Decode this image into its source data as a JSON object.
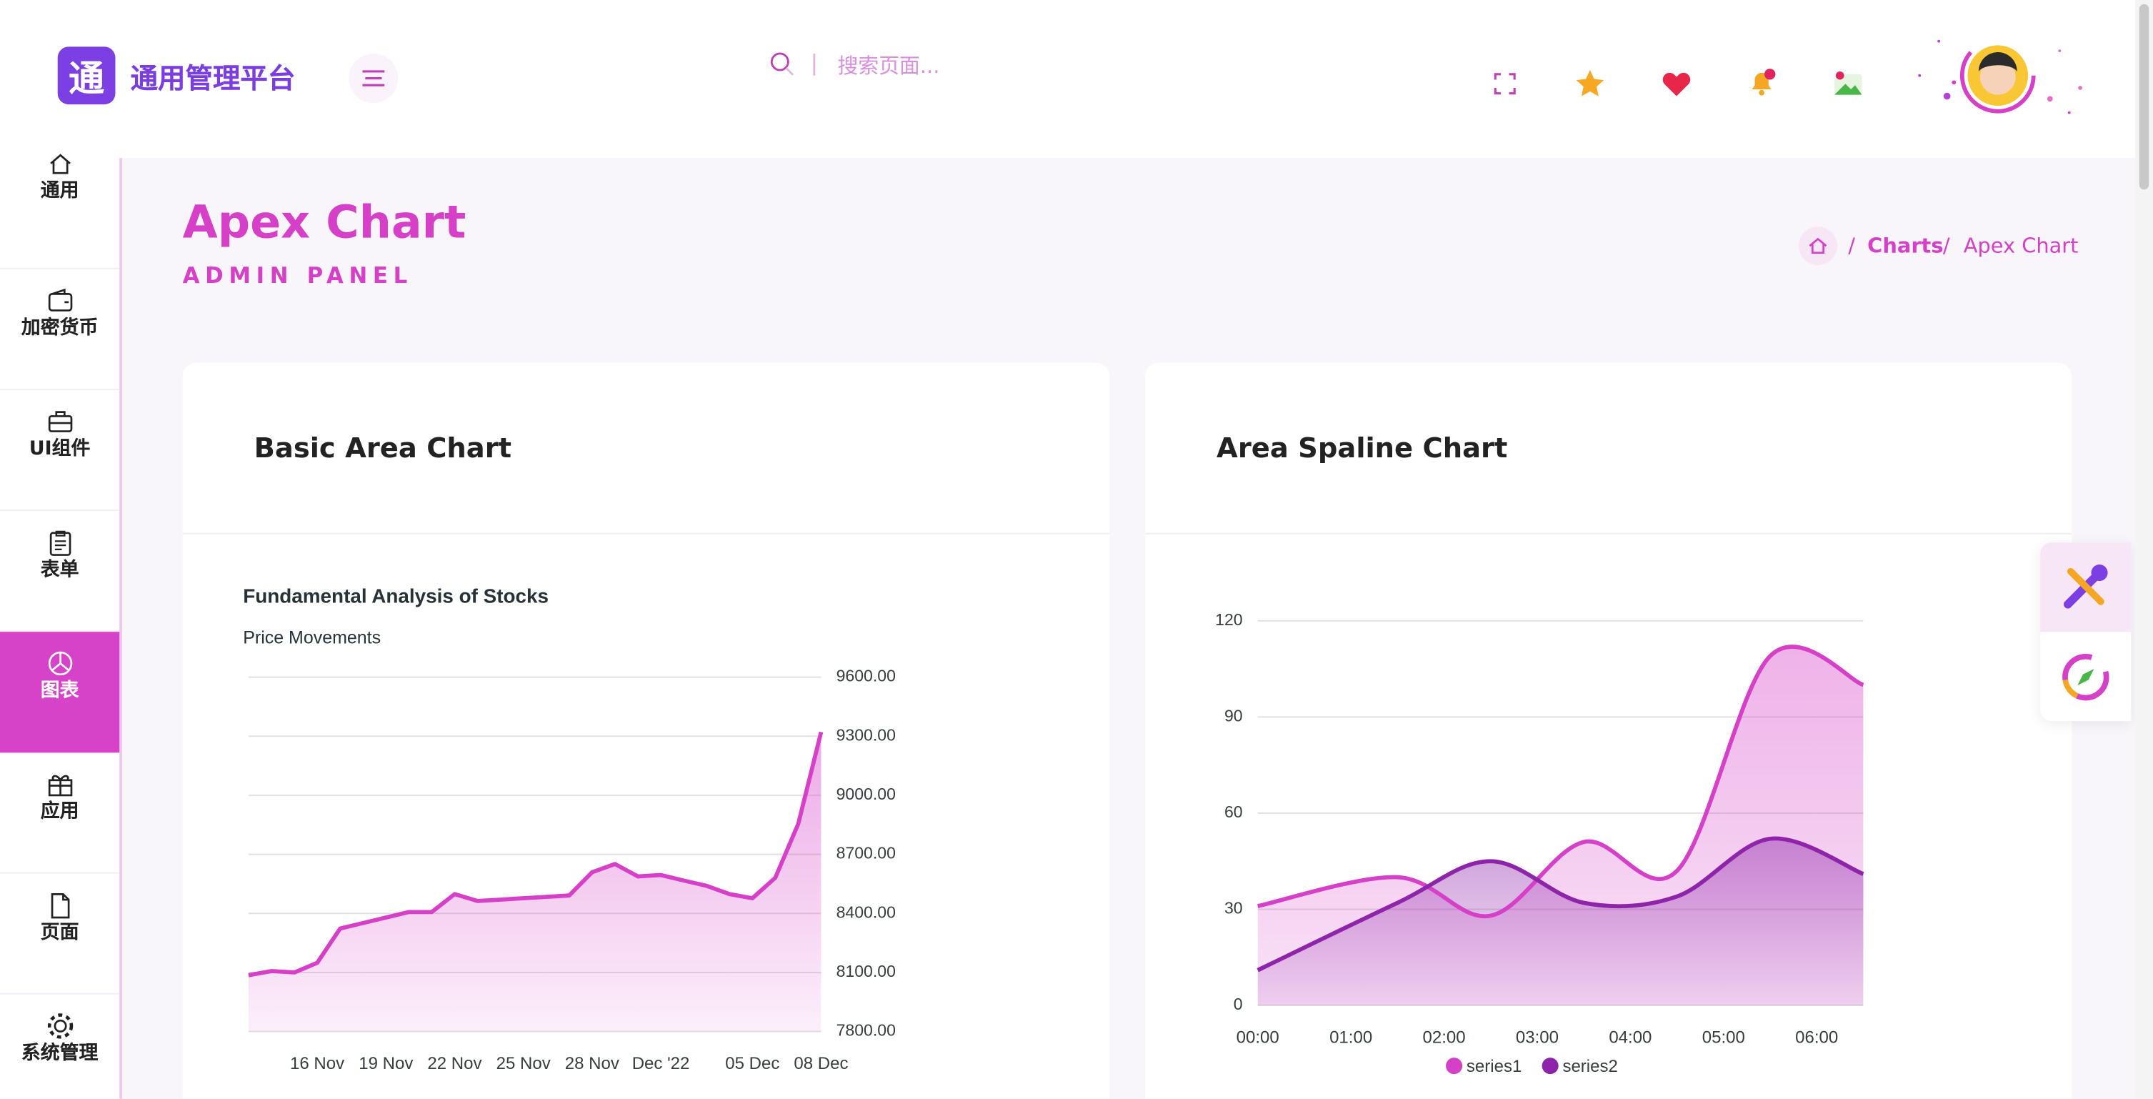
{
  "header": {
    "logo": "通",
    "brand": "通用管理平台",
    "search_placeholder": "搜索页面..."
  },
  "sidebar": {
    "items": [
      "通用",
      "加密货币",
      "UI组件",
      "表单",
      "图表",
      "应用",
      "页面",
      "系统管理"
    ],
    "active": 4
  },
  "page": {
    "title": "Apex Chart",
    "subtitle": "ADMIN PANEL",
    "breadcrumb": [
      "Charts",
      "Apex Chart"
    ]
  },
  "cards": [
    {
      "title": "Basic Area Chart",
      "chart": {
        "type": "area",
        "title": "Fundamental Analysis of Stocks",
        "subtitle": "Price Movements",
        "categories": [
          null,
          null,
          null,
          "16 Nov",
          null,
          null,
          "19 Nov",
          null,
          null,
          "22 Nov",
          null,
          null,
          "25 Nov",
          null,
          null,
          "28 Nov",
          null,
          null,
          "Dec '22",
          null,
          null,
          null,
          "05 Dec",
          null,
          null,
          "08 Dec"
        ],
        "values": [
          8086,
          8107,
          8100,
          8149,
          8323,
          8351,
          8379,
          8407,
          8407,
          8498,
          8463,
          8470,
          8477,
          8484,
          8491,
          8609,
          8651,
          8588,
          8595,
          8567,
          8540,
          8498,
          8477,
          8581,
          8854,
          9321
        ],
        "color": "#d63fc7",
        "ylim": [
          7800,
          9600
        ],
        "yticks": [
          {
            "value": 7800,
            "label": "7800.00"
          },
          {
            "value": 8100,
            "label": "8100.00"
          },
          {
            "value": 8400,
            "label": "8400.00"
          },
          {
            "value": 8700,
            "label": "8700.00"
          },
          {
            "value": 9000,
            "label": "9000.00"
          },
          {
            "value": 9300,
            "label": "9300.00"
          },
          {
            "value": 9600,
            "label": "9600.00"
          }
        ],
        "grid": true
      }
    },
    {
      "title": "Area Spaline Chart",
      "chart": {
        "type": "spline-area",
        "x": [
          0,
          1.5,
          2.5,
          3.5,
          4.5,
          5.5,
          6.5
        ],
        "xlim": [
          0,
          6.5
        ],
        "xticks": [
          {
            "value": 0,
            "label": "00:00"
          },
          {
            "value": 1,
            "label": "01:00"
          },
          {
            "value": 2,
            "label": "02:00"
          },
          {
            "value": 3,
            "label": "03:00"
          },
          {
            "value": 4,
            "label": "04:00"
          },
          {
            "value": 5,
            "label": "05:00"
          },
          {
            "value": 6,
            "label": "06:00"
          }
        ],
        "series": [
          {
            "name": "series1",
            "color": "#d63fc7",
            "values": [
              31,
              40,
              28,
              51,
              42,
              109,
              100
            ]
          },
          {
            "name": "series2",
            "color": "#8e24aa",
            "values": [
              11,
              32,
              45,
              32,
              34,
              52,
              41
            ]
          }
        ],
        "ylim": [
          0,
          120
        ],
        "yticks": [
          0,
          30,
          60,
          90,
          120
        ],
        "grid": true
      }
    }
  ]
}
